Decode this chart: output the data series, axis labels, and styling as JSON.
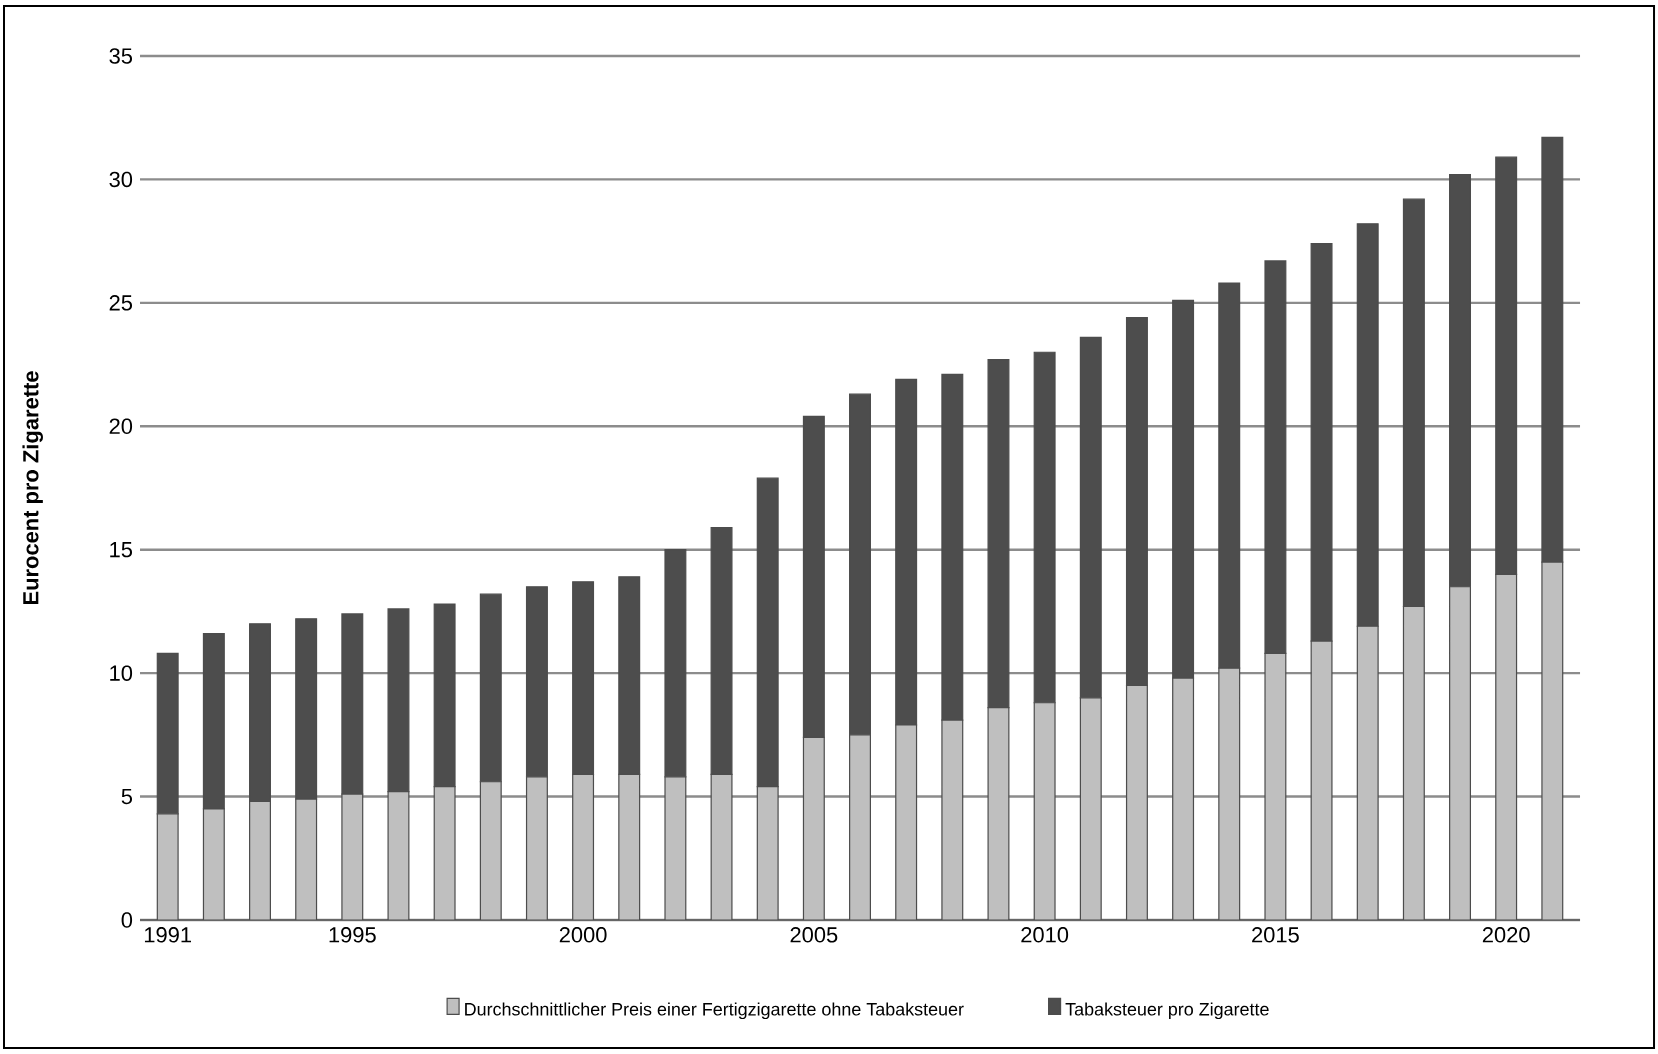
{
  "chart_data": {
    "type": "bar",
    "stacked": true,
    "ylabel": "Eurocent pro Zigarette",
    "categories": [
      "1991",
      null,
      null,
      null,
      "1995",
      null,
      null,
      null,
      null,
      "2000",
      null,
      null,
      null,
      null,
      "2005",
      null,
      null,
      null,
      null,
      "2010",
      null,
      null,
      null,
      null,
      "2015",
      null,
      null,
      null,
      null,
      "2020",
      null
    ],
    "series": [
      {
        "name": "Durchschnittlicher Preis einer Fertigzigarette ohne Tabaksteuer",
        "color": "#bfbfbf",
        "values": [
          4.3,
          4.5,
          4.8,
          4.9,
          5.1,
          5.2,
          5.4,
          5.6,
          5.8,
          5.9,
          5.9,
          5.8,
          5.9,
          5.4,
          7.4,
          7.5,
          7.9,
          8.1,
          8.6,
          8.8,
          9.0,
          9.5,
          9.8,
          10.2,
          10.8,
          11.3,
          11.9,
          12.7,
          13.5,
          14.0,
          14.5
        ]
      },
      {
        "name": "Tabaksteuer pro Zigarette",
        "color": "#4d4d4d",
        "values": [
          6.5,
          7.1,
          7.2,
          7.3,
          7.3,
          7.4,
          7.4,
          7.6,
          7.7,
          7.8,
          8.0,
          9.2,
          10.0,
          12.5,
          13.0,
          13.8,
          14.0,
          14.0,
          14.1,
          14.2,
          14.6,
          14.9,
          15.3,
          15.6,
          15.9,
          16.1,
          16.3,
          16.5,
          16.7,
          16.9,
          17.2
        ]
      }
    ],
    "ylim": [
      0,
      35
    ],
    "yticks": [
      0,
      5,
      10,
      15,
      20,
      25,
      30,
      35
    ],
    "grid": "y",
    "legend": "bottom"
  }
}
